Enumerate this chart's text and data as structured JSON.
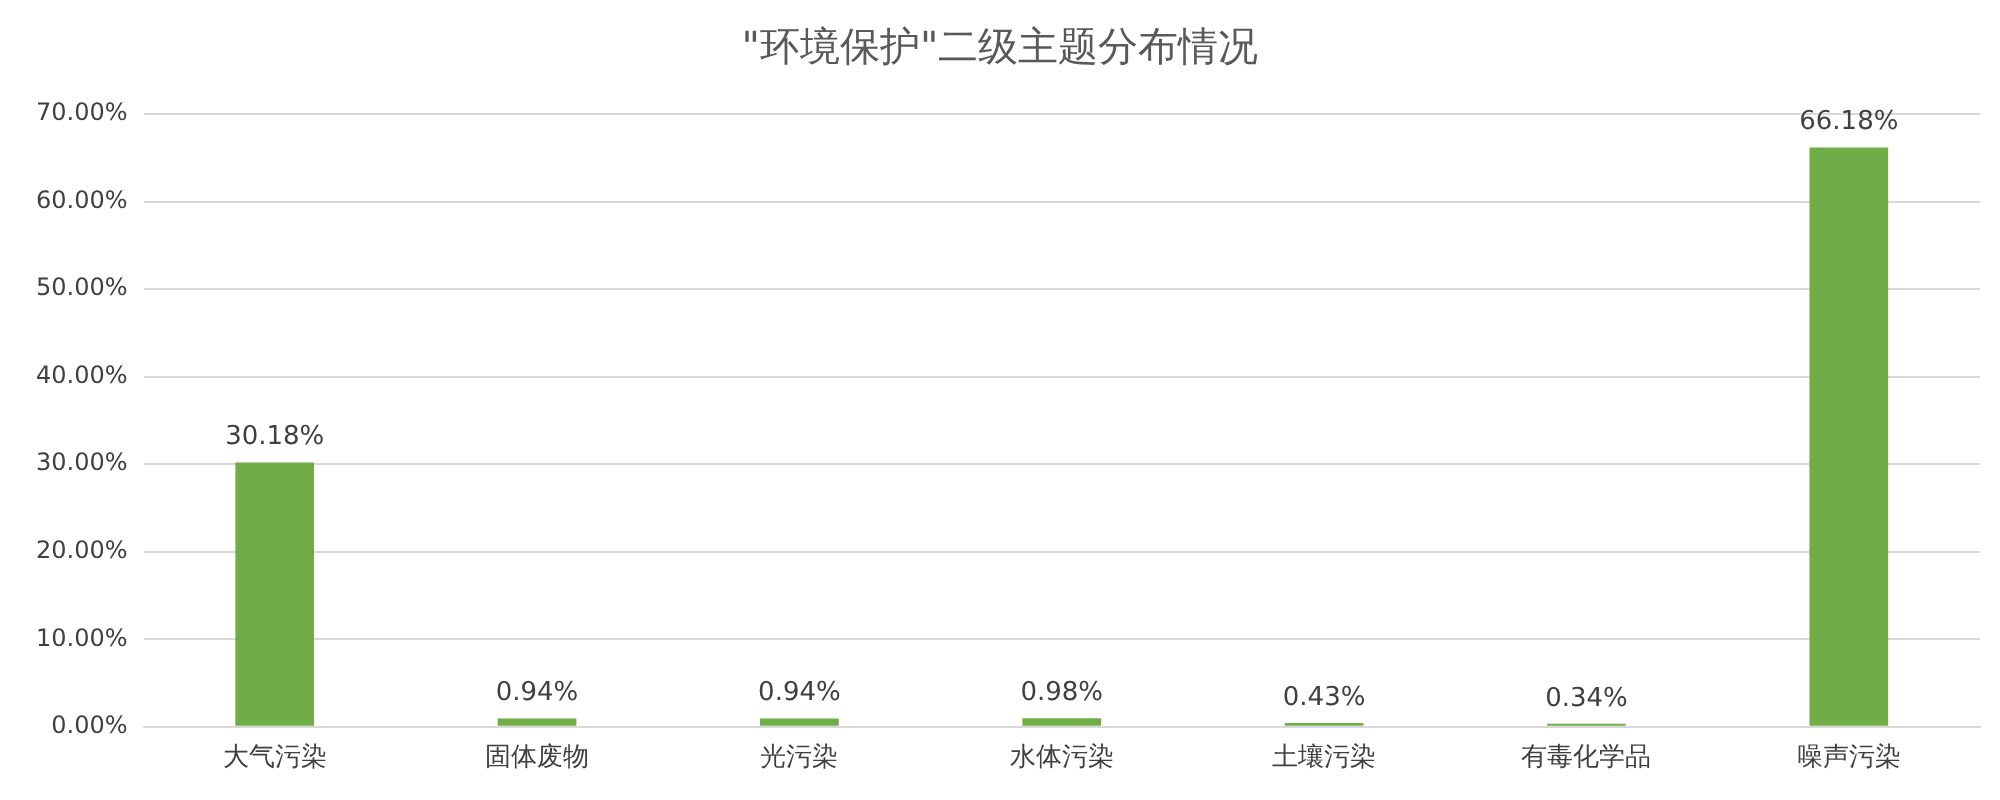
{
  "chart_data": {
    "type": "bar",
    "title": "\"环境保护\"二级主题分布情况",
    "categories": [
      "大气污染",
      "固体废物",
      "光污染",
      "水体污染",
      "土壤污染",
      "有毒化学品",
      "噪声污染"
    ],
    "values": [
      30.18,
      0.94,
      0.94,
      0.98,
      0.43,
      0.34,
      66.18
    ],
    "value_labels": [
      "30.18%",
      "0.94%",
      "0.94%",
      "0.98%",
      "0.43%",
      "0.34%",
      "66.18%"
    ],
    "color": "#70ad47",
    "ylim": [
      0,
      70
    ],
    "yticks": [
      {
        "value": 0,
        "label": "0.00%"
      },
      {
        "value": 10,
        "label": "10.00%"
      },
      {
        "value": 20,
        "label": "20.00%"
      },
      {
        "value": 30,
        "label": "30.00%"
      },
      {
        "value": 40,
        "label": "40.00%"
      },
      {
        "value": 50,
        "label": "50.00%"
      },
      {
        "value": 60,
        "label": "60.00%"
      },
      {
        "value": 70,
        "label": "70.00%"
      }
    ],
    "grid": "y",
    "legend": false
  }
}
